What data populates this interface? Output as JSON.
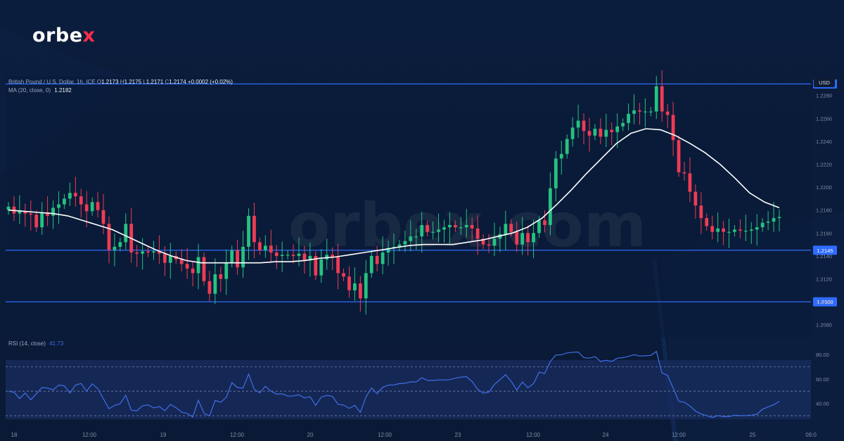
{
  "brand": {
    "logo_main": "orbe",
    "logo_x": "x",
    "watermark": "orbex.com"
  },
  "header": {
    "symbol": "British Pound / U.S. Dollar, 1h, ICE",
    "o_label": "O",
    "o": "1.2173",
    "h_label": "H",
    "h": "1.2175",
    "l_label": "L",
    "l": "1.2171",
    "c_label": "C",
    "c": "1.2174",
    "change": "+0.0002 (+0.02%)",
    "ma_label": "MA (20, close, 0)",
    "ma_value": "1.2182",
    "rsi_label": "RSI (14, close)",
    "rsi_value": "41.73"
  },
  "currency": "USD",
  "colors": {
    "background": "#0b1d3c",
    "up": "#26c281",
    "down": "#ef3b55",
    "ma": "#ffffff",
    "rsi": "#3f6fe6",
    "level": "#2f6bff"
  },
  "chart_data": [
    {
      "type": "candlestick",
      "title": "British Pound / U.S. Dollar, 1h, ICE",
      "ylim": [
        1.207,
        1.2297
      ],
      "y_ticks": [
        "1.2280",
        "1.2260",
        "1.2240",
        "1.2220",
        "1.2200",
        "1.2180",
        "1.2160",
        "1.2140",
        "1.2120",
        "1.2100",
        "1.2080"
      ],
      "x_ticks": [
        "18",
        "12:00",
        "19",
        "12:00",
        "20",
        "12:00",
        "23",
        "12:00",
        "24",
        "12:00",
        "25",
        "09:0"
      ],
      "horizontal_levels": [
        "1.2290",
        "1.2145",
        "1.2100"
      ],
      "grid": false,
      "close": [
        1.2183,
        1.2177,
        1.2179,
        1.2177,
        1.2176,
        1.2165,
        1.2178,
        1.2175,
        1.2182,
        1.2185,
        1.219,
        1.2195,
        1.2192,
        1.2185,
        1.2179,
        1.2187,
        1.218,
        1.2168,
        1.2145,
        1.2148,
        1.2152,
        1.2168,
        1.2143,
        1.2142,
        1.2144,
        1.2143,
        1.2144,
        1.2142,
        1.2134,
        1.214,
        1.2137,
        1.2133,
        1.2129,
        1.2125,
        1.2139,
        1.2118,
        1.2107,
        1.2124,
        1.212,
        1.2134,
        1.2145,
        1.213,
        1.2148,
        1.2175,
        1.2152,
        1.2145,
        1.2149,
        1.2143,
        1.214,
        1.2141,
        1.2141,
        1.214,
        1.2142,
        1.2136,
        1.214,
        1.2123,
        1.2137,
        1.2141,
        1.2139,
        1.2125,
        1.2122,
        1.211,
        1.2116,
        1.2103,
        1.2125,
        1.214,
        1.2133,
        1.2143,
        1.2147,
        1.2148,
        1.215,
        1.2153,
        1.2157,
        1.2157,
        1.2167,
        1.2161,
        1.2161,
        1.2163,
        1.2165,
        1.2167,
        1.2165,
        1.2165,
        1.2167,
        1.2164,
        1.2155,
        1.215,
        1.2149,
        1.2155,
        1.2159,
        1.2168,
        1.2161,
        1.215,
        1.216,
        1.2152,
        1.216,
        1.2171,
        1.2167,
        1.2199,
        1.2225,
        1.2229,
        1.2242,
        1.2252,
        1.2258,
        1.2249,
        1.2245,
        1.2251,
        1.2244,
        1.225,
        1.2248,
        1.2253,
        1.2256,
        1.2264,
        1.2267,
        1.2266,
        1.2266,
        1.2266,
        1.2288,
        1.2266,
        1.2263,
        1.2241,
        1.2213,
        1.2212,
        1.2196,
        1.2184,
        1.2173,
        1.2166,
        1.2161,
        1.2164,
        1.2161,
        1.2161,
        1.2163,
        1.2162,
        1.2162,
        1.2163,
        1.2165,
        1.2169,
        1.217,
        1.2173,
        1.2174
      ]
    },
    {
      "type": "line",
      "title": "MA (20, close, 0)",
      "ylim": [
        1.207,
        1.2297
      ],
      "values": [
        1.218,
        1.2179,
        1.2178,
        1.2177,
        1.2175,
        1.2171,
        1.2167,
        1.2163,
        1.2157,
        1.2151,
        1.2145,
        1.214,
        1.2136,
        1.2134,
        1.2134,
        1.2134,
        1.2134,
        1.2134,
        1.2135,
        1.2135,
        1.2136,
        1.2138,
        1.2139,
        1.2141,
        1.2143,
        1.2145,
        1.2147,
        1.2149,
        1.215,
        1.215,
        1.215,
        1.2152,
        1.2154,
        1.2157,
        1.216,
        1.2165,
        1.2173,
        1.2185,
        1.2198,
        1.2212,
        1.2225,
        1.2238,
        1.2247,
        1.2251,
        1.225,
        1.2245,
        1.2238,
        1.223,
        1.222,
        1.2208,
        1.2195,
        1.2187,
        1.2182
      ],
      "x_positions_hint": "hourly"
    },
    {
      "type": "line",
      "title": "RSI (14, close)",
      "ylim": [
        22,
        88
      ],
      "y_ticks": [
        "80.00",
        "60.00",
        "40.00"
      ],
      "bands": [
        30,
        50,
        70
      ],
      "values": [
        50.0,
        49.2,
        44.0,
        48.5,
        43.0,
        48.0,
        53.0,
        52.6,
        51.0,
        55.0,
        54.5,
        48.5,
        55.0,
        56.3,
        50.0,
        56.1,
        52.1,
        43.8,
        35.8,
        38.4,
        39.8,
        46.6,
        34.5,
        34.0,
        38.1,
        38.8,
        36.4,
        37.5,
        34.1,
        39.2,
        36.5,
        33.0,
        31.9,
        29.0,
        42.6,
        32.1,
        29.8,
        42.5,
        41.0,
        45.0,
        57.0,
        53.0,
        52.6,
        64.0,
        51.6,
        48.7,
        54.0,
        50.0,
        47.6,
        47.8,
        46.0,
        46.1,
        47.1,
        44.5,
        45.5,
        38.4,
        45.2,
        46.6,
        45.8,
        39.4,
        38.7,
        36.0,
        38.5,
        32.7,
        45.3,
        52.6,
        48.0,
        53.1,
        55.0,
        55.1,
        56.2,
        56.5,
        57.6,
        57.6,
        61.0,
        58.8,
        58.8,
        59.2,
        59.2,
        59.4,
        60.6,
        61.5,
        61.9,
        58.0,
        51.6,
        48.4,
        49.3,
        55.6,
        59.4,
        63.4,
        58.1,
        51.0,
        57.5,
        52.8,
        56.2,
        65.5,
        64.4,
        74.2,
        79.5,
        79.8,
        81.2,
        81.8,
        82.0,
        77.5,
        76.9,
        78.3,
        74.2,
        75.2,
        74.3,
        76.9,
        77.4,
        78.5,
        79.8,
        78.7,
        78.9,
        79.2,
        82.5,
        65.0,
        62.8,
        52.6,
        41.9,
        41.0,
        38.0,
        33.7,
        31.5,
        30.1,
        28.6,
        30.1,
        29.3,
        29.4,
        30.4,
        30.1,
        30.1,
        30.5,
        31.2,
        35.3,
        37.2,
        39.0,
        41.73
      ]
    }
  ]
}
